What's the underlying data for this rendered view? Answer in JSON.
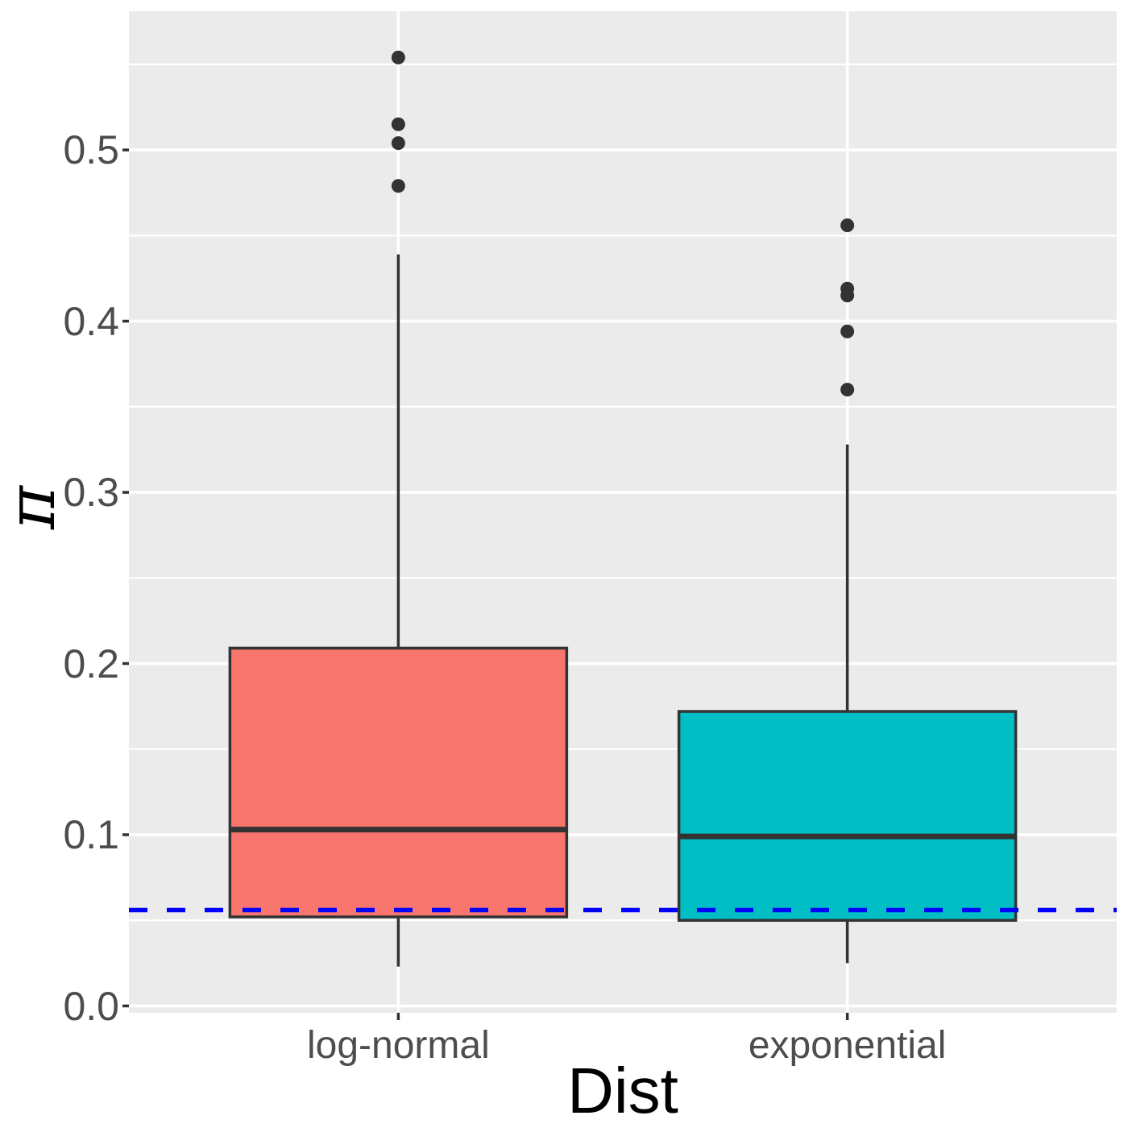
{
  "figure": {
    "background": "#FFFFFF",
    "panel_background": "#EBEBEB",
    "grid_color": "#FFFFFF",
    "axis_text_color": "#4D4D4D",
    "axis_title_color": "#000000",
    "box_outline_color": "#333333",
    "outlier_color": "#333333"
  },
  "chart_data": {
    "type": "boxplot",
    "title": "",
    "xlabel": "Dist",
    "ylabel": "π",
    "categories": [
      "log-normal",
      "exponential"
    ],
    "ylim": [
      -0.004,
      0.581
    ],
    "y_major_ticks": [
      0.0,
      0.1,
      0.2,
      0.3,
      0.4,
      0.5
    ],
    "y_tick_labels": [
      "0.0",
      "0.1",
      "0.2",
      "0.3",
      "0.4",
      "0.5"
    ],
    "y_minor_ticks": [
      0.05,
      0.15,
      0.25,
      0.35,
      0.45,
      0.55
    ],
    "grid": true,
    "legend_position": "none",
    "series": [
      {
        "name": "log-normal",
        "fill": "#F8766D",
        "whisker_low": 0.023,
        "q1": 0.052,
        "median": 0.103,
        "q3": 0.209,
        "whisker_high": 0.439,
        "outliers": [
          0.479,
          0.504,
          0.515,
          0.554
        ]
      },
      {
        "name": "exponential",
        "fill": "#00BFC4",
        "whisker_low": 0.025,
        "q1": 0.05,
        "median": 0.099,
        "q3": 0.172,
        "whisker_high": 0.328,
        "outliers": [
          0.36,
          0.394,
          0.415,
          0.419,
          0.456
        ]
      }
    ],
    "reference_line": {
      "y": 0.056,
      "color": "#0000FF",
      "style": "dashed"
    }
  }
}
